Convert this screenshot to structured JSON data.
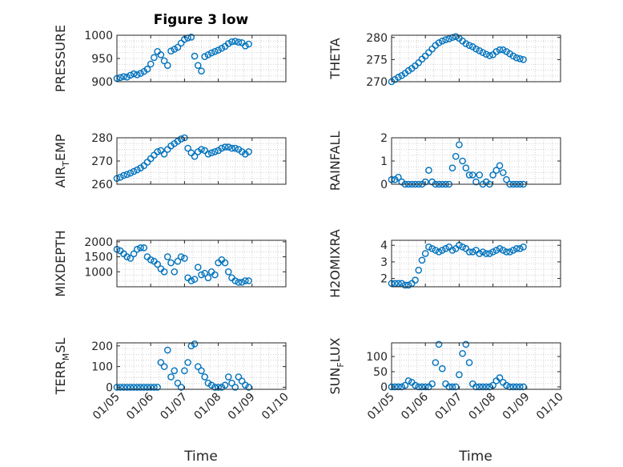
{
  "figure": {
    "title": "Figure 3 low",
    "xlabel": "Time",
    "x_ticks": [
      "01/05",
      "01/06",
      "01/07",
      "01/08",
      "01/09",
      "01/10"
    ],
    "marker_color": "#0072BD",
    "grid": "dotted minor grid"
  },
  "chart_data": [
    {
      "type": "scatter",
      "ylabel": "PRESSURE",
      "ylim": [
        900,
        1000
      ],
      "yticks": [
        900,
        950,
        1000
      ],
      "ytick_labels": [
        "900",
        "950",
        "1000"
      ],
      "x": [
        5.0,
        5.1,
        5.2,
        5.3,
        5.4,
        5.5,
        5.6,
        5.7,
        5.8,
        5.9,
        6.0,
        6.1,
        6.2,
        6.3,
        6.4,
        6.5,
        6.6,
        6.7,
        6.8,
        6.9,
        7.0,
        7.1,
        7.2,
        7.3,
        7.4,
        7.5,
        7.6,
        7.7,
        7.8,
        7.9,
        8.0,
        8.1,
        8.2,
        8.3,
        8.4,
        8.5,
        8.6,
        8.7,
        8.8,
        8.9
      ],
      "values": [
        907,
        909,
        911,
        910,
        914,
        917,
        915,
        918,
        922,
        927,
        938,
        952,
        965,
        958,
        945,
        935,
        966,
        970,
        974,
        983,
        991,
        994,
        996,
        955,
        935,
        923,
        954,
        958,
        962,
        965,
        968,
        972,
        976,
        982,
        986,
        987,
        985,
        984,
        977,
        981
      ]
    },
    {
      "type": "scatter",
      "ylabel": "THETA",
      "ylim": [
        270,
        280.5
      ],
      "yticks": [
        270,
        275,
        280
      ],
      "ytick_labels": [
        "270",
        "275",
        "280"
      ],
      "x": [
        5.0,
        5.1,
        5.2,
        5.3,
        5.4,
        5.5,
        5.6,
        5.7,
        5.8,
        5.9,
        6.0,
        6.1,
        6.2,
        6.3,
        6.4,
        6.5,
        6.6,
        6.7,
        6.8,
        6.9,
        7.0,
        7.1,
        7.2,
        7.3,
        7.4,
        7.5,
        7.6,
        7.7,
        7.8,
        7.9,
        8.0,
        8.1,
        8.2,
        8.3,
        8.4,
        8.5,
        8.6,
        8.7,
        8.8,
        8.9
      ],
      "values": [
        270.0,
        270.5,
        271.0,
        271.4,
        271.9,
        272.5,
        273.0,
        273.6,
        274.3,
        275.1,
        275.8,
        276.6,
        277.4,
        278.2,
        278.8,
        279.2,
        279.5,
        279.7,
        280.0,
        280.2,
        279.8,
        279.2,
        278.6,
        278.2,
        277.9,
        277.4,
        277.0,
        276.6,
        276.2,
        275.9,
        276.1,
        276.8,
        277.2,
        277.2,
        276.8,
        276.3,
        275.8,
        275.4,
        275.2,
        275.0
      ]
    },
    {
      "type": "scatter",
      "ylabel": "AIR_TEMP",
      "ylim": [
        260,
        280
      ],
      "yticks": [
        260,
        270,
        280
      ],
      "ytick_labels": [
        "260",
        "270",
        "280"
      ],
      "x": [
        5.0,
        5.1,
        5.2,
        5.3,
        5.4,
        5.5,
        5.6,
        5.7,
        5.8,
        5.9,
        6.0,
        6.1,
        6.2,
        6.3,
        6.4,
        6.5,
        6.6,
        6.7,
        6.8,
        6.9,
        7.0,
        7.1,
        7.2,
        7.3,
        7.4,
        7.5,
        7.6,
        7.7,
        7.8,
        7.9,
        8.0,
        8.1,
        8.2,
        8.3,
        8.4,
        8.5,
        8.6,
        8.7,
        8.8,
        8.9
      ],
      "values": [
        262.5,
        263.0,
        263.8,
        264.2,
        264.8,
        265.5,
        266.2,
        267.0,
        268.0,
        269.5,
        271.0,
        272.5,
        274.0,
        274.5,
        273.0,
        275.0,
        276.5,
        277.5,
        278.5,
        279.5,
        280.0,
        275.5,
        273.5,
        272.0,
        274.0,
        275.0,
        274.5,
        273.0,
        273.5,
        274.0,
        274.5,
        275.5,
        276.0,
        276.0,
        275.5,
        275.5,
        275.0,
        274.0,
        273.0,
        274.0
      ]
    },
    {
      "type": "scatter",
      "ylabel": "RAINFALL",
      "ylim": [
        0,
        2
      ],
      "yticks": [
        0,
        1,
        2
      ],
      "ytick_labels": [
        "0",
        "1",
        "2"
      ],
      "x": [
        5.0,
        5.1,
        5.2,
        5.3,
        5.4,
        5.5,
        5.6,
        5.7,
        5.8,
        5.9,
        6.0,
        6.1,
        6.2,
        6.3,
        6.4,
        6.5,
        6.6,
        6.7,
        6.8,
        6.9,
        7.0,
        7.1,
        7.2,
        7.3,
        7.4,
        7.5,
        7.6,
        7.7,
        7.8,
        7.9,
        8.0,
        8.1,
        8.2,
        8.3,
        8.4,
        8.5,
        8.6,
        8.7,
        8.8,
        8.9
      ],
      "values": [
        0.2,
        0.2,
        0.3,
        0.1,
        0.0,
        0.0,
        0.0,
        0.0,
        0.0,
        0.0,
        0.1,
        0.6,
        0.1,
        0.0,
        0.0,
        0.0,
        0.0,
        0.0,
        0.7,
        1.2,
        1.7,
        1.0,
        0.7,
        0.4,
        0.4,
        0.1,
        0.4,
        0.0,
        0.1,
        0.0,
        0.4,
        0.6,
        0.8,
        0.5,
        0.2,
        0.0,
        0.0,
        0.0,
        0.0,
        0.0
      ]
    },
    {
      "type": "scatter",
      "ylabel": "MIXDEPTH",
      "ylim": [
        500,
        2050
      ],
      "yticks": [
        1000,
        1500,
        2000
      ],
      "ytick_labels": [
        "1000",
        "1500",
        "2000"
      ],
      "x": [
        5.0,
        5.1,
        5.2,
        5.3,
        5.4,
        5.5,
        5.6,
        5.7,
        5.8,
        5.9,
        6.0,
        6.1,
        6.2,
        6.3,
        6.4,
        6.5,
        6.6,
        6.7,
        6.8,
        6.9,
        7.0,
        7.1,
        7.2,
        7.3,
        7.4,
        7.5,
        7.6,
        7.7,
        7.8,
        7.9,
        8.0,
        8.1,
        8.2,
        8.3,
        8.4,
        8.5,
        8.6,
        8.7,
        8.8,
        8.9
      ],
      "values": [
        1750,
        1700,
        1600,
        1500,
        1450,
        1600,
        1750,
        1800,
        1800,
        1500,
        1400,
        1350,
        1250,
        1100,
        1000,
        1500,
        1300,
        1000,
        1350,
        1500,
        1450,
        800,
        700,
        750,
        1150,
        900,
        950,
        800,
        1000,
        900,
        1300,
        1400,
        1300,
        1000,
        800,
        700,
        650,
        650,
        700,
        700
      ]
    },
    {
      "type": "scatter",
      "ylabel": "H2OMIXRA",
      "ylim": [
        1.5,
        4.3
      ],
      "yticks": [
        2,
        3,
        4
      ],
      "ytick_labels": [
        "2",
        "3",
        "4"
      ],
      "x": [
        5.0,
        5.1,
        5.2,
        5.3,
        5.4,
        5.5,
        5.6,
        5.7,
        5.8,
        5.9,
        6.0,
        6.1,
        6.2,
        6.3,
        6.4,
        6.5,
        6.6,
        6.7,
        6.8,
        6.9,
        7.0,
        7.1,
        7.2,
        7.3,
        7.4,
        7.5,
        7.6,
        7.7,
        7.8,
        7.9,
        8.0,
        8.1,
        8.2,
        8.3,
        8.4,
        8.5,
        8.6,
        8.7,
        8.8,
        8.9
      ],
      "values": [
        1.7,
        1.7,
        1.7,
        1.7,
        1.6,
        1.6,
        1.7,
        1.9,
        2.5,
        3.1,
        3.5,
        3.9,
        3.8,
        3.7,
        3.6,
        3.7,
        3.8,
        3.9,
        3.7,
        3.8,
        4.0,
        3.9,
        3.8,
        3.6,
        3.6,
        3.7,
        3.5,
        3.6,
        3.5,
        3.5,
        3.6,
        3.7,
        3.8,
        3.7,
        3.6,
        3.6,
        3.7,
        3.8,
        3.8,
        3.9
      ]
    },
    {
      "type": "scatter",
      "ylabel": "TERR_MSL",
      "ylim": [
        -10,
        215
      ],
      "yticks": [
        0,
        100,
        200
      ],
      "ytick_labels": [
        "0",
        "100",
        "200"
      ],
      "x": [
        5.0,
        5.1,
        5.2,
        5.3,
        5.4,
        5.5,
        5.6,
        5.7,
        5.8,
        5.9,
        6.0,
        6.1,
        6.2,
        6.3,
        6.4,
        6.5,
        6.6,
        6.7,
        6.8,
        6.9,
        7.0,
        7.1,
        7.2,
        7.3,
        7.4,
        7.5,
        7.6,
        7.7,
        7.8,
        7.9,
        8.0,
        8.1,
        8.2,
        8.3,
        8.4,
        8.5,
        8.6,
        8.7,
        8.8,
        8.9
      ],
      "values": [
        0,
        0,
        0,
        0,
        0,
        0,
        0,
        0,
        0,
        0,
        0,
        0,
        0,
        120,
        100,
        180,
        50,
        80,
        20,
        0,
        80,
        120,
        200,
        210,
        100,
        80,
        50,
        20,
        10,
        0,
        0,
        0,
        10,
        50,
        20,
        0,
        50,
        30,
        10,
        0
      ]
    },
    {
      "type": "scatter",
      "ylabel": "SUN_FLUX",
      "ylim": [
        -8,
        145
      ],
      "yticks": [
        0,
        50,
        100
      ],
      "ytick_labels": [
        "0",
        "50",
        "100"
      ],
      "x": [
        5.0,
        5.1,
        5.2,
        5.3,
        5.4,
        5.5,
        5.6,
        5.7,
        5.8,
        5.9,
        6.0,
        6.1,
        6.2,
        6.3,
        6.4,
        6.5,
        6.6,
        6.7,
        6.8,
        6.9,
        7.0,
        7.1,
        7.2,
        7.3,
        7.4,
        7.5,
        7.6,
        7.7,
        7.8,
        7.9,
        8.0,
        8.1,
        8.2,
        8.3,
        8.4,
        8.5,
        8.6,
        8.7,
        8.8,
        8.9
      ],
      "values": [
        0,
        0,
        0,
        0,
        5,
        20,
        15,
        5,
        0,
        0,
        0,
        0,
        10,
        80,
        140,
        60,
        10,
        0,
        0,
        0,
        40,
        110,
        140,
        80,
        10,
        0,
        0,
        0,
        0,
        0,
        5,
        20,
        30,
        15,
        5,
        0,
        0,
        0,
        0,
        0
      ]
    }
  ]
}
